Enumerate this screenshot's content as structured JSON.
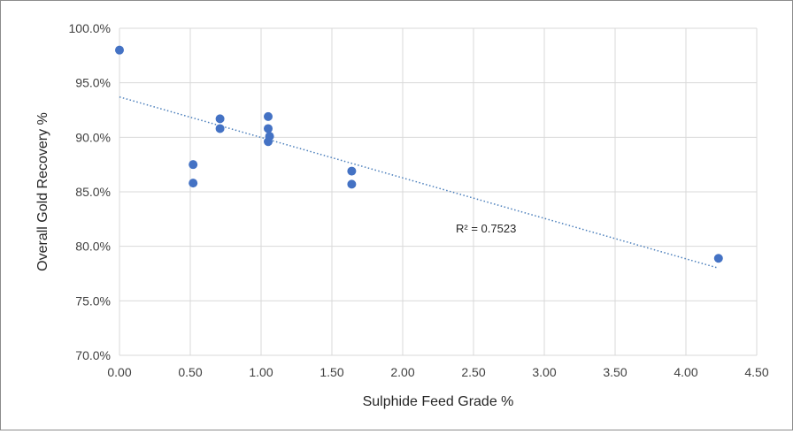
{
  "chart_data": {
    "type": "scatter",
    "xlabel": "Sulphide Feed Grade %",
    "ylabel": "Overall Gold Recovery %",
    "xlim": [
      0,
      4.5
    ],
    "ylim": [
      70,
      100
    ],
    "x_ticks": [
      "0.00",
      "0.50",
      "1.00",
      "1.50",
      "2.00",
      "2.50",
      "3.00",
      "3.50",
      "4.00",
      "4.50"
    ],
    "y_ticks": [
      "70.0%",
      "75.0%",
      "80.0%",
      "85.0%",
      "90.0%",
      "95.0%",
      "100.0%"
    ],
    "grid": true,
    "legend": "none",
    "point_color": "#4472c4",
    "trendline_color": "#4a7ebb",
    "points": [
      {
        "x": 0.0,
        "y": 98.0
      },
      {
        "x": 0.52,
        "y": 87.5
      },
      {
        "x": 0.52,
        "y": 85.8
      },
      {
        "x": 0.71,
        "y": 91.7
      },
      {
        "x": 0.71,
        "y": 90.8
      },
      {
        "x": 1.05,
        "y": 91.9
      },
      {
        "x": 1.05,
        "y": 90.8
      },
      {
        "x": 1.06,
        "y": 90.1
      },
      {
        "x": 1.05,
        "y": 89.6
      },
      {
        "x": 1.64,
        "y": 86.9
      },
      {
        "x": 1.64,
        "y": 85.7
      },
      {
        "x": 4.23,
        "y": 78.9
      }
    ],
    "trendline": {
      "type": "linear",
      "x": [
        0.0,
        4.23
      ],
      "y": [
        93.7,
        78.0
      ],
      "r_squared_label": "R² = 0.7523"
    }
  }
}
